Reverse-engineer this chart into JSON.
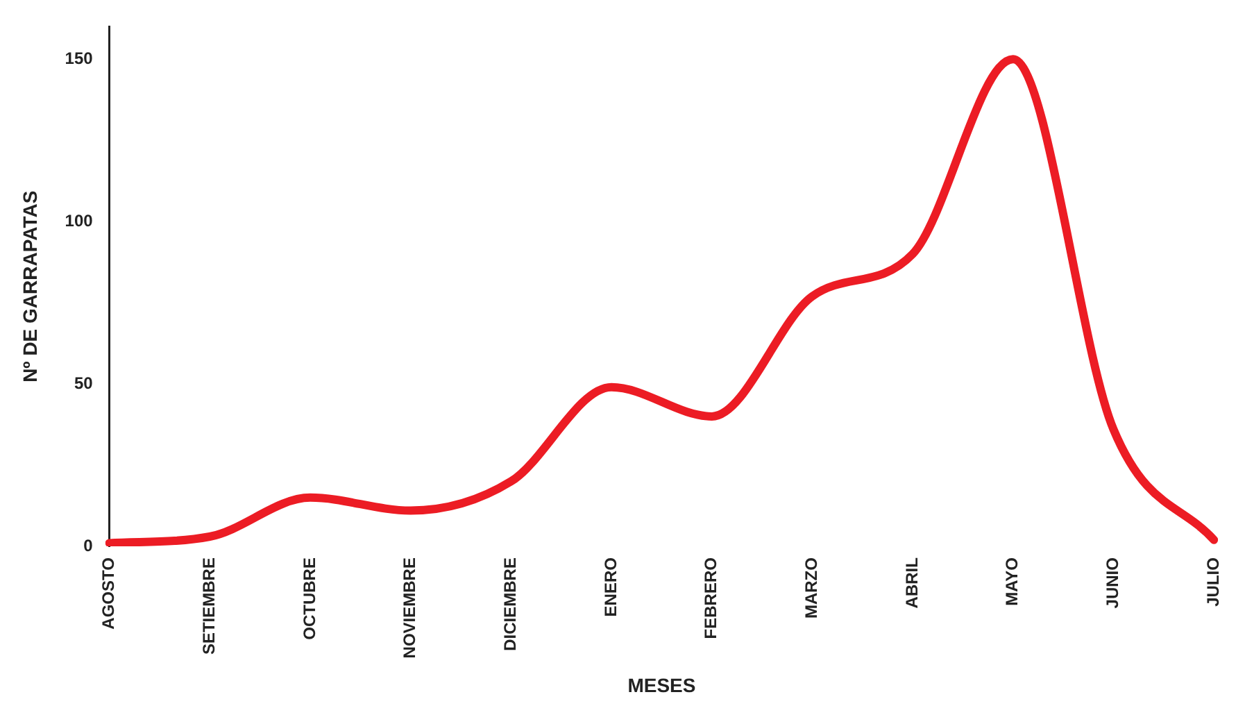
{
  "chart_data": {
    "type": "line",
    "xlabel": "MESES",
    "ylabel": "Nº DE GARRAPATAS",
    "categories": [
      "AGOSTO",
      "SETIEMBRE",
      "OCTUBRE",
      "NOVIEMBRE",
      "DICIEMBRE",
      "ENERO",
      "FEBRERO",
      "MARZO",
      "ABRIL",
      "MAYO",
      "JUNIO",
      "JULIO"
    ],
    "series": [
      {
        "color": "#ec1c24",
        "values": [
          1,
          3,
          15,
          11,
          20,
          49,
          40,
          77,
          90,
          150,
          36,
          2
        ]
      }
    ],
    "ylim": [
      0,
      160
    ],
    "yticks": [
      0,
      50,
      100,
      150
    ],
    "grid": false,
    "legend": false,
    "marker": "none",
    "line_style": "solid"
  }
}
